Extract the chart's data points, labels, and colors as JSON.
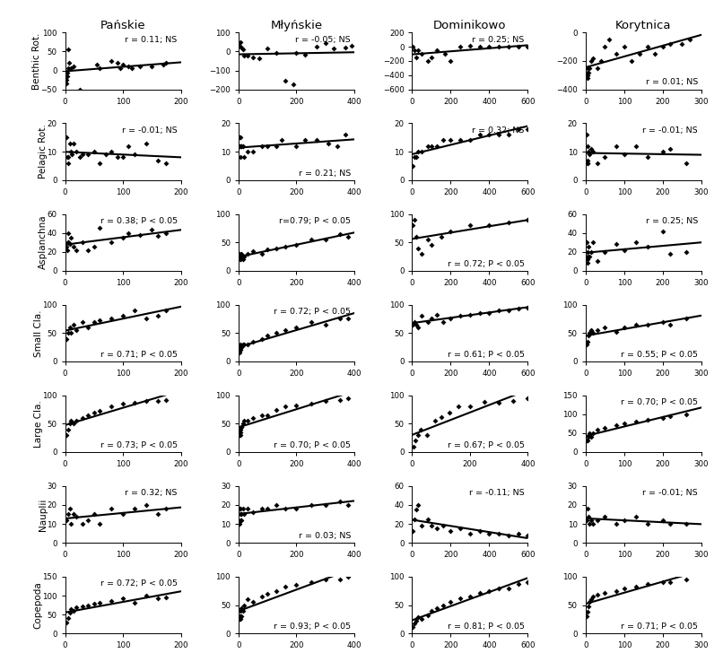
{
  "col_titles": [
    "Pańskie",
    "Młyńskie",
    "Dominikowo",
    "Korytnica"
  ],
  "row_titles": [
    "Benthic Rot.",
    "Pelagic Rot.",
    "Asplanchna",
    "Small Cla.",
    "Large Cla.",
    "Nauplii",
    "Copepoda"
  ],
  "annotations": [
    [
      "r = 0.11; NS",
      "r = -0.05; NS",
      "r = 0.25; NS",
      "r = 0.01; NS"
    ],
    [
      "r = -0.01; NS",
      "r = 0.21; NS",
      "r = 0.32; NS",
      "r = -0.01; NS"
    ],
    [
      "r = 0.38; P < 0.05",
      "r=0.79; P < 0.05",
      "r = 0.72; P < 0.05",
      "r = 0.25; NS"
    ],
    [
      "r = 0.71; P < 0.05",
      "r = 0.72; P < 0.05",
      "r = 0.61; P < 0.05",
      "r = 0.55; P < 0.05"
    ],
    [
      "r = 0.73; P < 0.05",
      "r = 0.70; P < 0.05",
      "r = 0.67; P < 0.05",
      "r = 0.70; P < 0.05"
    ],
    [
      "r = 0.32; NS",
      "r = 0.03; NS",
      "r = -0.11; NS",
      "r = -0.01; NS"
    ],
    [
      "r = 0.72; P < 0.05",
      "r = 0.93; P < 0.05",
      "r = 0.81; P < 0.05",
      "r = 0.71; P < 0.05"
    ]
  ],
  "annot_pos": [
    [
      "upper right",
      "upper right",
      "upper right",
      "lower right"
    ],
    [
      "upper right",
      "lower right",
      "upper right",
      "upper right"
    ],
    [
      "upper right",
      "upper right",
      "lower right",
      "upper right"
    ],
    [
      "lower right",
      "upper right",
      "lower right",
      "lower right"
    ],
    [
      "lower right",
      "lower right",
      "lower right",
      "upper right"
    ],
    [
      "upper right",
      "lower right",
      "upper right",
      "upper right"
    ],
    [
      "upper right",
      "lower right",
      "lower right",
      "lower right"
    ]
  ],
  "xlims": [
    [
      [
        0,
        200
      ],
      [
        0,
        400
      ],
      [
        0,
        600
      ],
      [
        0,
        300
      ]
    ],
    [
      [
        0,
        200
      ],
      [
        0,
        400
      ],
      [
        0,
        600
      ],
      [
        0,
        300
      ]
    ],
    [
      [
        0,
        200
      ],
      [
        0,
        400
      ],
      [
        0,
        600
      ],
      [
        0,
        300
      ]
    ],
    [
      [
        0,
        200
      ],
      [
        0,
        400
      ],
      [
        0,
        600
      ],
      [
        0,
        300
      ]
    ],
    [
      [
        0,
        200
      ],
      [
        0,
        400
      ],
      [
        0,
        400
      ],
      [
        0,
        300
      ]
    ],
    [
      [
        0,
        200
      ],
      [
        0,
        400
      ],
      [
        0,
        600
      ],
      [
        0,
        300
      ]
    ],
    [
      [
        0,
        200
      ],
      [
        0,
        400
      ],
      [
        0,
        600
      ],
      [
        0,
        300
      ]
    ]
  ],
  "ylims": [
    [
      [
        -50,
        100
      ],
      [
        -200,
        100
      ],
      [
        -600,
        200
      ],
      [
        -400,
        0
      ]
    ],
    [
      [
        0,
        20
      ],
      [
        0,
        20
      ],
      [
        0,
        20
      ],
      [
        0,
        20
      ]
    ],
    [
      [
        0,
        60
      ],
      [
        0,
        100
      ],
      [
        0,
        100
      ],
      [
        0,
        60
      ]
    ],
    [
      [
        0,
        100
      ],
      [
        0,
        100
      ],
      [
        0,
        100
      ],
      [
        0,
        100
      ]
    ],
    [
      [
        0,
        100
      ],
      [
        0,
        100
      ],
      [
        0,
        100
      ],
      [
        0,
        150
      ]
    ],
    [
      [
        0,
        30
      ],
      [
        0,
        30
      ],
      [
        0,
        60
      ],
      [
        0,
        30
      ]
    ],
    [
      [
        0,
        150
      ],
      [
        0,
        100
      ],
      [
        0,
        100
      ],
      [
        0,
        100
      ]
    ]
  ],
  "xticks": [
    [
      [
        0,
        100,
        200
      ],
      [
        0,
        200,
        400
      ],
      [
        0,
        200,
        400,
        600
      ],
      [
        0,
        100,
        200,
        300
      ]
    ],
    [
      [
        0,
        100,
        200
      ],
      [
        0,
        200,
        400
      ],
      [
        0,
        200,
        400,
        600
      ],
      [
        0,
        100,
        200,
        300
      ]
    ],
    [
      [
        0,
        100,
        200
      ],
      [
        0,
        200,
        400
      ],
      [
        0,
        200,
        400,
        600
      ],
      [
        0,
        100,
        200,
        300
      ]
    ],
    [
      [
        0,
        100,
        200
      ],
      [
        0,
        200,
        400
      ],
      [
        0,
        200,
        400,
        600
      ],
      [
        0,
        100,
        200,
        300
      ]
    ],
    [
      [
        0,
        100,
        200
      ],
      [
        0,
        200,
        400
      ],
      [
        0,
        200,
        400
      ],
      [
        0,
        100,
        200,
        300
      ]
    ],
    [
      [
        0,
        100,
        200
      ],
      [
        0,
        200,
        400
      ],
      [
        0,
        200,
        400,
        600
      ],
      [
        0,
        100,
        200,
        300
      ]
    ],
    [
      [
        0,
        100,
        200
      ],
      [
        0,
        200,
        400
      ],
      [
        0,
        200,
        400,
        600
      ],
      [
        0,
        100,
        200,
        300
      ]
    ]
  ],
  "yticks": [
    [
      [
        -50,
        0,
        50,
        100
      ],
      [
        -200,
        -100,
        0,
        100
      ],
      [
        -600,
        -400,
        -200,
        0,
        200
      ],
      [
        -400,
        -200,
        0
      ]
    ],
    [
      [
        0,
        10,
        20
      ],
      [
        0,
        10,
        20
      ],
      [
        0,
        10,
        20
      ],
      [
        0,
        10,
        20
      ]
    ],
    [
      [
        0,
        20,
        40,
        60
      ],
      [
        0,
        50,
        100
      ],
      [
        0,
        50,
        100
      ],
      [
        0,
        20,
        40,
        60
      ]
    ],
    [
      [
        0,
        50,
        100
      ],
      [
        0,
        50,
        100
      ],
      [
        0,
        50,
        100
      ],
      [
        0,
        50,
        100
      ]
    ],
    [
      [
        0,
        50,
        100
      ],
      [
        0,
        50,
        100
      ],
      [
        0,
        50,
        100
      ],
      [
        0,
        50,
        100,
        150
      ]
    ],
    [
      [
        0,
        10,
        20,
        30
      ],
      [
        0,
        10,
        20,
        30
      ],
      [
        0,
        20,
        40,
        60
      ],
      [
        0,
        10,
        20,
        30
      ]
    ],
    [
      [
        0,
        50,
        100,
        150
      ],
      [
        0,
        50,
        100
      ],
      [
        0,
        50,
        100
      ],
      [
        0,
        50,
        100
      ]
    ]
  ],
  "scatter_data": {
    "Benthic_Panskie_x": [
      3,
      3,
      4,
      4,
      5,
      5,
      7,
      10,
      15,
      25,
      55,
      60,
      80,
      90,
      95,
      100,
      110,
      115,
      130,
      150,
      170,
      175
    ],
    "Benthic_Panskie_y": [
      -35,
      -25,
      -15,
      -5,
      5,
      55,
      20,
      5,
      10,
      -50,
      15,
      5,
      25,
      20,
      5,
      15,
      10,
      5,
      10,
      10,
      15,
      20
    ],
    "Benthic_Mlynskie_x": [
      3,
      5,
      10,
      15,
      20,
      30,
      50,
      70,
      100,
      130,
      160,
      190,
      200,
      230,
      270,
      300,
      330,
      370,
      390
    ],
    "Benthic_Mlynskie_y": [
      30,
      50,
      20,
      10,
      -20,
      -20,
      -30,
      -35,
      15,
      -5,
      -155,
      -175,
      -5,
      -15,
      25,
      45,
      15,
      20,
      30
    ],
    "Benthic_Dominikowo_x": [
      5,
      10,
      20,
      30,
      50,
      80,
      100,
      130,
      170,
      200,
      250,
      300,
      350,
      400,
      450,
      500,
      550,
      600
    ],
    "Benthic_Dominikowo_y": [
      0,
      -50,
      -150,
      -50,
      -100,
      -200,
      -150,
      -50,
      -100,
      -200,
      0,
      10,
      5,
      5,
      5,
      5,
      5,
      0
    ],
    "Benthic_Korytnica_x": [
      3,
      4,
      5,
      5,
      6,
      8,
      10,
      15,
      20,
      30,
      40,
      50,
      60,
      80,
      100,
      120,
      140,
      160,
      180,
      200,
      220,
      250,
      270
    ],
    "Benthic_Korytnica_y": [
      -300,
      -280,
      -250,
      -300,
      -320,
      -280,
      -250,
      -200,
      -180,
      -250,
      -200,
      -100,
      -50,
      -150,
      -100,
      -200,
      -150,
      -100,
      -150,
      -100,
      -80,
      -80,
      -50
    ],
    "Pelagic_Panskie_x": [
      3,
      4,
      5,
      6,
      8,
      10,
      12,
      15,
      20,
      25,
      30,
      40,
      50,
      60,
      70,
      80,
      90,
      100,
      110,
      120,
      140,
      160,
      175
    ],
    "Pelagic_Panskie_y": [
      15,
      8,
      6,
      8,
      13,
      10,
      9,
      13,
      10,
      8,
      9,
      9,
      10,
      6,
      9,
      10,
      8,
      8,
      12,
      9,
      13,
      7,
      6
    ],
    "Pelagic_Mlynskie_x": [
      3,
      4,
      5,
      5,
      6,
      8,
      10,
      15,
      20,
      30,
      50,
      80,
      100,
      130,
      150,
      200,
      230,
      270,
      310,
      340,
      370
    ],
    "Pelagic_Mlynskie_y": [
      12,
      15,
      15,
      12,
      8,
      12,
      12,
      12,
      8,
      10,
      10,
      12,
      12,
      12,
      14,
      12,
      14,
      14,
      13,
      12,
      16
    ],
    "Pelagic_Dominikowo_x": [
      5,
      10,
      20,
      30,
      50,
      80,
      100,
      130,
      160,
      200,
      250,
      300,
      350,
      400,
      450,
      500,
      550,
      600
    ],
    "Pelagic_Dominikowo_y": [
      5,
      8,
      8,
      10,
      10,
      12,
      12,
      12,
      14,
      14,
      14,
      14,
      16,
      16,
      16,
      16,
      18,
      18
    ],
    "Pelagic_Korytnica_x": [
      3,
      4,
      5,
      5,
      6,
      8,
      10,
      15,
      20,
      30,
      50,
      80,
      100,
      130,
      160,
      200,
      220,
      260
    ],
    "Pelagic_Korytnica_y": [
      16,
      12,
      6,
      7,
      6,
      10,
      9,
      11,
      10,
      6,
      8,
      12,
      9,
      12,
      8,
      10,
      11,
      6
    ],
    "Asplanchna_Panskie_x": [
      3,
      4,
      5,
      5,
      6,
      8,
      10,
      15,
      20,
      30,
      40,
      50,
      60,
      80,
      100,
      110,
      130,
      150,
      160,
      175
    ],
    "Asplanchna_Panskie_y": [
      25,
      22,
      30,
      30,
      40,
      28,
      35,
      25,
      22,
      30,
      22,
      25,
      45,
      30,
      35,
      40,
      38,
      43,
      37,
      40
    ],
    "Asplanchna_Mlynskie_x": [
      3,
      4,
      5,
      5,
      6,
      8,
      10,
      15,
      20,
      30,
      50,
      80,
      100,
      130,
      160,
      200,
      250,
      300,
      350,
      380
    ],
    "Asplanchna_Mlynskie_y": [
      30,
      25,
      25,
      20,
      20,
      25,
      30,
      20,
      25,
      30,
      35,
      30,
      38,
      40,
      42,
      45,
      55,
      55,
      65,
      60
    ],
    "Asplanchna_Dominikowo_x": [
      5,
      10,
      20,
      30,
      50,
      80,
      100,
      150,
      200,
      300,
      400,
      500,
      600
    ],
    "Asplanchna_Dominikowo_y": [
      80,
      90,
      60,
      40,
      30,
      55,
      45,
      60,
      70,
      80,
      80,
      85,
      90
    ],
    "Asplanchna_Korytnica_x": [
      3,
      4,
      5,
      5,
      6,
      8,
      10,
      15,
      20,
      30,
      50,
      80,
      100,
      130,
      160,
      200,
      220,
      260
    ],
    "Asplanchna_Korytnica_y": [
      30,
      15,
      12,
      8,
      20,
      25,
      15,
      20,
      30,
      10,
      20,
      28,
      22,
      30,
      25,
      42,
      18,
      20
    ],
    "SmallCla_Panskie_x": [
      3,
      5,
      8,
      10,
      15,
      20,
      30,
      40,
      50,
      60,
      80,
      100,
      120,
      140,
      160,
      175
    ],
    "SmallCla_Panskie_y": [
      40,
      50,
      60,
      50,
      65,
      55,
      70,
      60,
      70,
      72,
      75,
      80,
      90,
      75,
      80,
      90
    ],
    "SmallCla_Mlynskie_x": [
      3,
      4,
      5,
      5,
      6,
      8,
      10,
      15,
      20,
      30,
      50,
      80,
      100,
      130,
      160,
      200,
      250,
      300,
      350,
      380
    ],
    "SmallCla_Mlynskie_y": [
      15,
      20,
      25,
      30,
      20,
      25,
      25,
      30,
      30,
      30,
      35,
      40,
      45,
      50,
      55,
      60,
      70,
      65,
      75,
      75
    ],
    "SmallCla_Dominikowo_x": [
      5,
      10,
      20,
      30,
      50,
      80,
      100,
      130,
      160,
      200,
      250,
      300,
      350,
      400,
      450,
      500,
      550,
      600
    ],
    "SmallCla_Dominikowo_y": [
      65,
      70,
      65,
      60,
      80,
      70,
      75,
      82,
      70,
      75,
      80,
      82,
      85,
      85,
      90,
      90,
      93,
      95
    ],
    "SmallCla_Korytnica_x": [
      3,
      5,
      8,
      10,
      15,
      20,
      30,
      50,
      80,
      100,
      130,
      160,
      200,
      220,
      260
    ],
    "SmallCla_Korytnica_y": [
      30,
      35,
      45,
      50,
      55,
      50,
      55,
      60,
      52,
      60,
      65,
      65,
      70,
      65,
      75
    ],
    "LargeCla_Panskie_x": [
      3,
      5,
      8,
      10,
      15,
      20,
      30,
      40,
      50,
      60,
      80,
      100,
      120,
      140,
      160,
      175
    ],
    "LargeCla_Panskie_y": [
      30,
      40,
      50,
      55,
      50,
      55,
      60,
      65,
      70,
      72,
      80,
      85,
      87,
      90,
      90,
      92
    ],
    "LargeCla_Mlynskie_x": [
      3,
      4,
      5,
      5,
      6,
      8,
      10,
      15,
      20,
      30,
      50,
      80,
      100,
      130,
      160,
      200,
      250,
      300,
      350,
      380
    ],
    "LargeCla_Mlynskie_y": [
      30,
      35,
      30,
      40,
      35,
      45,
      45,
      50,
      55,
      55,
      60,
      65,
      65,
      75,
      80,
      82,
      85,
      90,
      92,
      95
    ],
    "LargeCla_Dominikowo_x": [
      5,
      10,
      20,
      30,
      50,
      80,
      100,
      130,
      160,
      200,
      250,
      300,
      350,
      400
    ],
    "LargeCla_Dominikowo_y": [
      10,
      20,
      30,
      40,
      30,
      55,
      62,
      70,
      80,
      80,
      88,
      87,
      90,
      95
    ],
    "LargeCla_Korytnica_x": [
      3,
      5,
      8,
      10,
      15,
      20,
      30,
      50,
      80,
      100,
      130,
      160,
      200,
      220,
      260
    ],
    "LargeCla_Korytnica_y": [
      30,
      30,
      40,
      50,
      40,
      50,
      60,
      65,
      70,
      75,
      80,
      85,
      90,
      95,
      100
    ],
    "Nauplii_Panskie_x": [
      3,
      5,
      8,
      10,
      15,
      20,
      30,
      40,
      50,
      60,
      80,
      100,
      120,
      140,
      160,
      175
    ],
    "Nauplii_Panskie_y": [
      12,
      15,
      18,
      10,
      15,
      14,
      10,
      12,
      15,
      10,
      18,
      15,
      18,
      20,
      15,
      18
    ],
    "Nauplii_Mlynskie_x": [
      3,
      4,
      5,
      5,
      6,
      8,
      10,
      15,
      20,
      30,
      50,
      80,
      100,
      130,
      160,
      200,
      250,
      300,
      350,
      380
    ],
    "Nauplii_Mlynskie_y": [
      10,
      18,
      15,
      12,
      18,
      15,
      12,
      18,
      15,
      18,
      16,
      18,
      18,
      20,
      18,
      18,
      20,
      20,
      22,
      20
    ],
    "Nauplii_Dominikowo_x": [
      5,
      10,
      20,
      30,
      50,
      80,
      100,
      130,
      160,
      200,
      250,
      300,
      350,
      400,
      450,
      500,
      550,
      600
    ],
    "Nauplii_Dominikowo_y": [
      12,
      25,
      35,
      40,
      18,
      25,
      18,
      15,
      18,
      12,
      15,
      10,
      12,
      10,
      10,
      8,
      10,
      8
    ],
    "Nauplii_Korytnica_x": [
      3,
      5,
      8,
      10,
      15,
      20,
      30,
      50,
      80,
      100,
      130,
      160,
      200,
      220,
      260
    ],
    "Nauplii_Korytnica_y": [
      12,
      18,
      14,
      10,
      12,
      10,
      12,
      14,
      10,
      12,
      14,
      10,
      12,
      10,
      10
    ],
    "Copepoda_Panskie_x": [
      3,
      5,
      8,
      10,
      15,
      20,
      30,
      40,
      50,
      60,
      80,
      100,
      120,
      140,
      160,
      175
    ],
    "Copepoda_Panskie_y": [
      30,
      40,
      55,
      65,
      60,
      70,
      72,
      75,
      78,
      80,
      85,
      92,
      82,
      100,
      92,
      95
    ],
    "Copepoda_Mlynskie_x": [
      3,
      4,
      5,
      5,
      6,
      8,
      10,
      15,
      20,
      30,
      50,
      80,
      100,
      130,
      160,
      200,
      250,
      300,
      350,
      380
    ],
    "Copepoda_Mlynskie_y": [
      25,
      30,
      25,
      30,
      40,
      45,
      30,
      40,
      50,
      60,
      55,
      65,
      70,
      75,
      82,
      85,
      90,
      95,
      95,
      100
    ],
    "Copepoda_Dominikowo_x": [
      5,
      10,
      20,
      30,
      50,
      80,
      100,
      130,
      160,
      200,
      250,
      300,
      350,
      400,
      450,
      500,
      550,
      600
    ],
    "Copepoda_Dominikowo_y": [
      12,
      18,
      22,
      28,
      25,
      32,
      40,
      45,
      50,
      55,
      62,
      65,
      72,
      75,
      80,
      80,
      88,
      90
    ],
    "Copepoda_Korytnica_x": [
      3,
      5,
      8,
      10,
      15,
      20,
      30,
      50,
      80,
      100,
      130,
      160,
      200,
      220,
      260
    ],
    "Copepoda_Korytnica_y": [
      30,
      38,
      48,
      55,
      60,
      65,
      68,
      72,
      75,
      80,
      82,
      88,
      90,
      90,
      95
    ]
  }
}
